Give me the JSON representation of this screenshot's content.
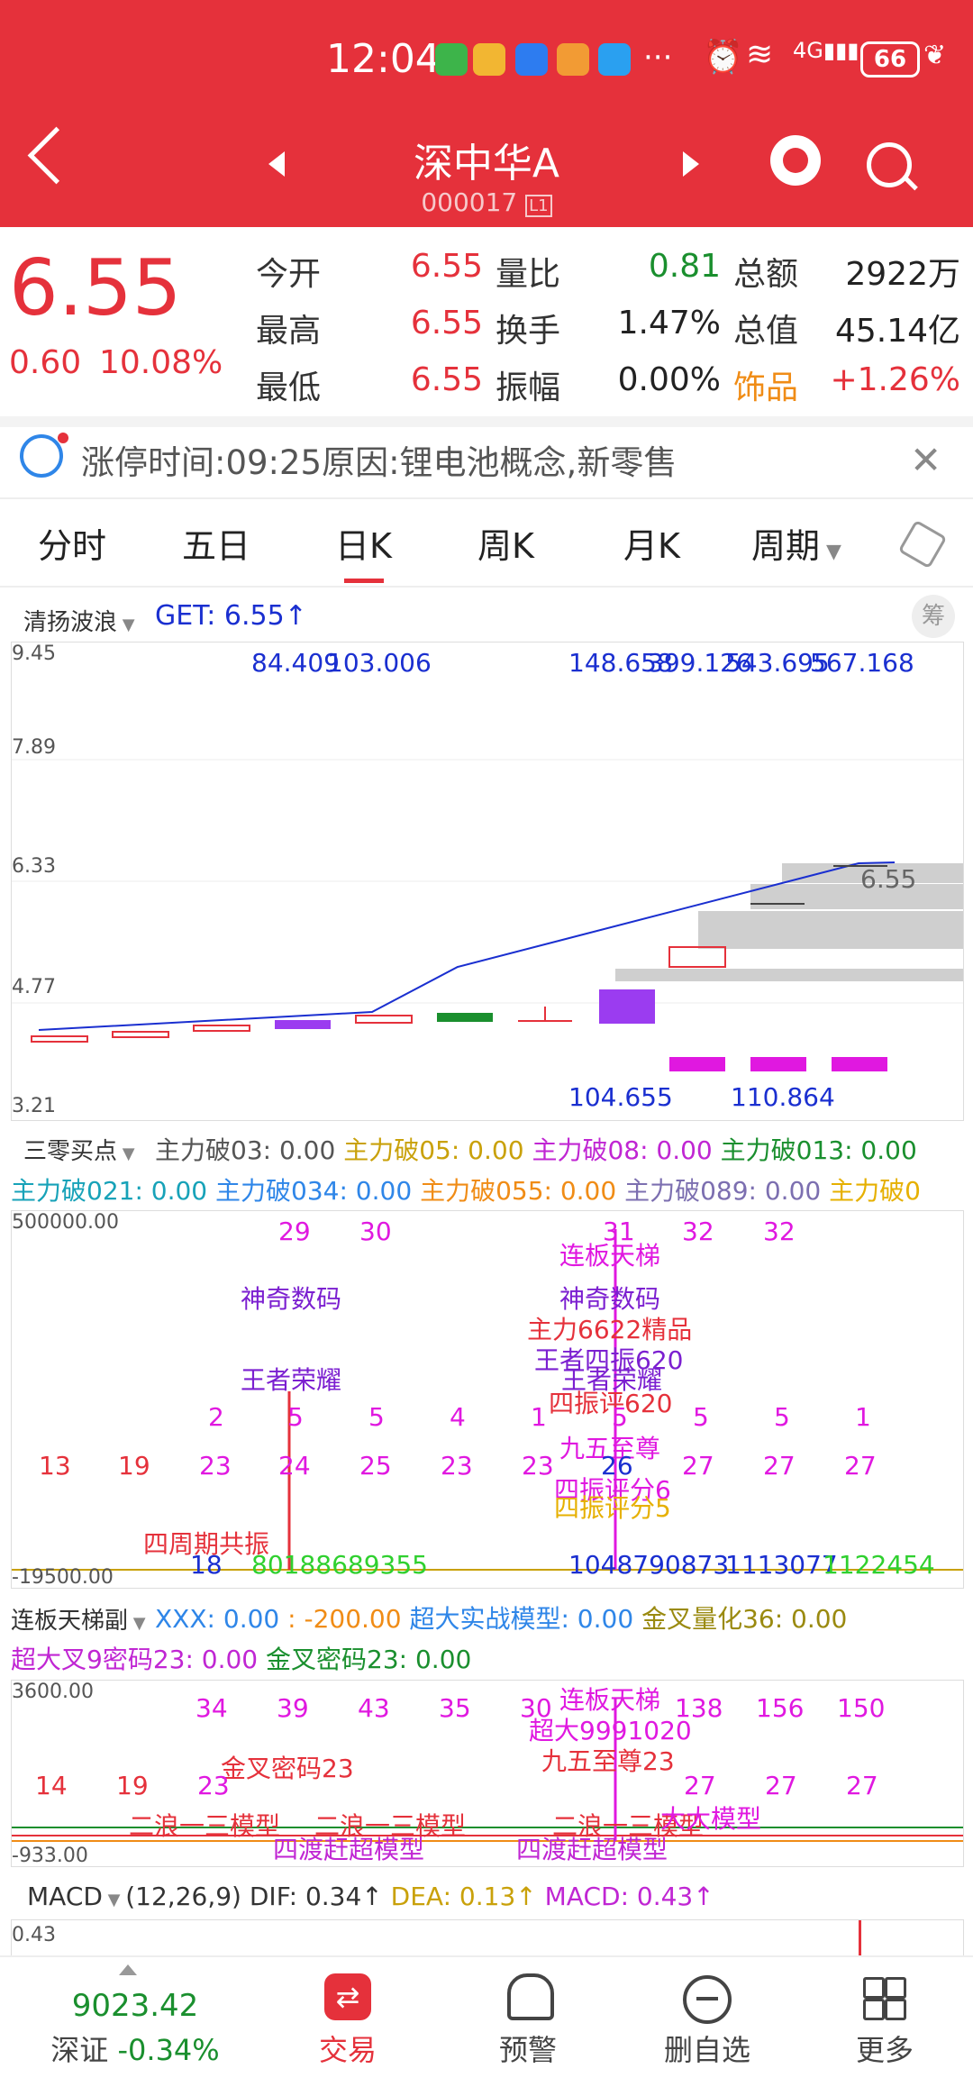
{
  "status": {
    "time": "12:04",
    "battery": "66",
    "network": "4G"
  },
  "header": {
    "name": "深中华A",
    "code": "000017",
    "level": "L1"
  },
  "quote": {
    "price": "6.55",
    "change": "0.60",
    "change_pct": "10.08%",
    "rows": [
      {
        "l1": "今开",
        "v1": "6.55",
        "l2": "量比",
        "v2": "0.81",
        "l3": "总额",
        "v3": "2922万"
      },
      {
        "l1": "最高",
        "v1": "6.55",
        "l2": "换手",
        "v2": "1.47%",
        "l3": "总值",
        "v3": "45.14亿"
      },
      {
        "l1": "最低",
        "v1": "6.55",
        "l2": "振幅",
        "v2": "0.00%",
        "l3": "饰品",
        "v3": "+1.26%"
      }
    ]
  },
  "notice": "涨停时间:09:25原因:锂电池概念,新零售",
  "tabs": [
    "分时",
    "五日",
    "日K",
    "周K",
    "月K",
    "周期"
  ],
  "active_tab": "日K",
  "main_chart": {
    "indicator": "清扬波浪",
    "get": "GET: 6.55↑",
    "chip_label": "筹",
    "y_ticks": [
      "9.45",
      "7.89",
      "6.33",
      "4.77",
      "3.21"
    ],
    "top_values": [
      "84.409",
      "103.006",
      "148.658",
      "399.126",
      "543.695",
      "567.168"
    ],
    "bottom_values": [
      "104.655",
      "110.864"
    ],
    "price_tag": "6.55"
  },
  "panel2": {
    "indicator": "三零买点",
    "line1": [
      "主力破03: 0.00",
      "主力破05: 0.00",
      "主力破08: 0.00",
      "主力破013: 0.00"
    ],
    "line2": [
      "主力破021: 0.00",
      "主力破034: 0.00",
      "主力破055: 0.00",
      "主力破089: 0.00",
      "主力破0"
    ],
    "y_top": "500000.00",
    "y_bottom": "-19500.00",
    "texts": [
      "29",
      "30",
      "31",
      "32",
      "32",
      "连板天梯",
      "神奇数码",
      "神奇数码",
      "主力6622精品",
      "王者荣耀",
      "王者四振620",
      "王者荣耀",
      "四振评620",
      "九五至尊",
      "四振评分6",
      "四振评分5",
      "四周期共振",
      "2",
      "5",
      "5",
      "4",
      "1",
      "5",
      "5",
      "5",
      "1",
      "13",
      "19",
      "23",
      "24",
      "25",
      "23",
      "23",
      "26",
      "27",
      "27",
      "27",
      "1048790873",
      "1113077",
      "1122454",
      "18",
      "80188689355"
    ]
  },
  "panel3": {
    "indicator": "连板天梯副",
    "line1": [
      "XXX: 0.00",
      ": -200.00",
      "超大实战模型: 0.00",
      "金叉量化36: 0.00"
    ],
    "line2": [
      "超大叉9密码23: 0.00",
      "金叉密码23: 0.00"
    ],
    "y_top": "3600.00",
    "y_bottom": "-933.00",
    "texts": [
      "34",
      "39",
      "43",
      "35",
      "30",
      "138",
      "156",
      "150",
      "连板天梯",
      "超大9991020",
      "九五至尊23",
      "金叉密码23",
      "14",
      "19",
      "23",
      "27",
      "27",
      "27",
      "二浪一三模型",
      "二浪一三模型",
      "四渡赶超模型",
      "四渡赶超模型",
      "二浪一三模型",
      "大大模型",
      "四渡赶超模型"
    ]
  },
  "macd": {
    "label": "MACD",
    "params": "(12,26,9)",
    "dif": "DIF: 0.34↑",
    "dea": "DEA: 0.13↑",
    "macd": "MACD: 0.43↑",
    "y_top": "0.43"
  },
  "bottom_nav": {
    "index_value": "9023.42",
    "index_name": "深证",
    "index_change": "-0.34%",
    "items": [
      "交易",
      "预警",
      "删自选",
      "更多"
    ]
  },
  "colors": {
    "brand_red": "#e5313b",
    "down_green": "#1a8f2e",
    "accent_orange": "#f08c16",
    "blue": "#1a2fd0",
    "magenta": "#e018e0"
  }
}
